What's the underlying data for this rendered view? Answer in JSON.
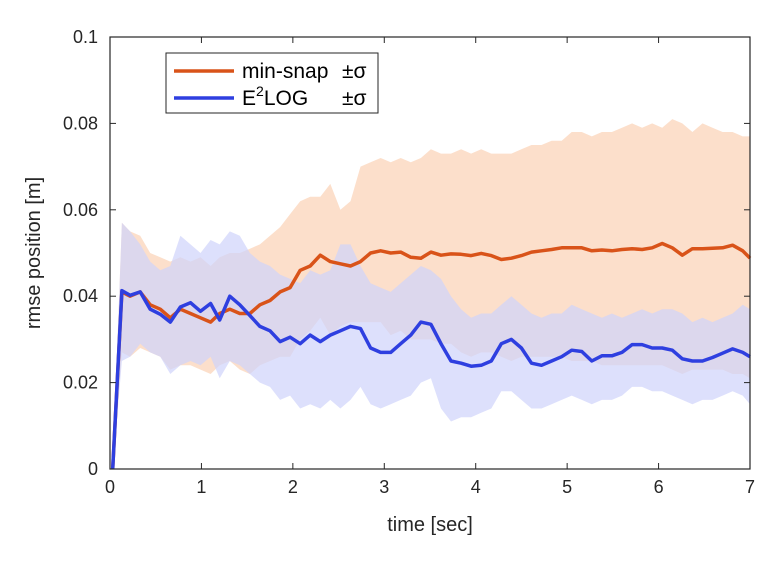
{
  "chart_data": {
    "type": "line",
    "title": "",
    "xlabel": "time [sec]",
    "ylabel": "rmse position [m]",
    "xlim": [
      0,
      7
    ],
    "ylim": [
      0,
      0.1
    ],
    "xticks": [
      "0",
      "1",
      "2",
      "3",
      "4",
      "5",
      "6",
      "7"
    ],
    "yticks": [
      "0",
      "0.02",
      "0.04",
      "0.06",
      "0.08",
      "0.1"
    ],
    "grid": false,
    "legend_position": "top-left",
    "legend": {
      "entries": [
        {
          "main": "min-snap",
          "sup": "",
          "after": "",
          "pm": "±σ"
        },
        {
          "main": "E",
          "sup": "2",
          "after": "LOG",
          "pm": "±σ"
        }
      ]
    },
    "series": [
      {
        "name": "min-snap",
        "color": "#d95319",
        "band_color": "#fbd9c2",
        "x": [
          0.03,
          0.13,
          0.22,
          0.33,
          0.44,
          0.55,
          0.66,
          0.77,
          0.88,
          0.99,
          1.1,
          1.2,
          1.31,
          1.42,
          1.53,
          1.64,
          1.75,
          1.86,
          1.97,
          2.08,
          2.19,
          2.3,
          2.41,
          2.52,
          2.63,
          2.74,
          2.85,
          2.96,
          3.07,
          3.18,
          3.29,
          3.4,
          3.51,
          3.62,
          3.73,
          3.84,
          3.95,
          4.06,
          4.17,
          4.28,
          4.39,
          4.5,
          4.61,
          4.72,
          4.83,
          4.94,
          5.05,
          5.16,
          5.27,
          5.38,
          5.49,
          5.6,
          5.71,
          5.82,
          5.93,
          6.04,
          6.15,
          6.26,
          6.37,
          6.48,
          6.59,
          6.7,
          6.81,
          6.92,
          7.0
        ],
        "mean": [
          0.0,
          0.041,
          0.04,
          0.041,
          0.038,
          0.037,
          0.035,
          0.037,
          0.036,
          0.035,
          0.034,
          0.036,
          0.037,
          0.036,
          0.036,
          0.038,
          0.039,
          0.041,
          0.042,
          0.046,
          0.047,
          0.0495,
          0.048,
          0.0475,
          0.047,
          0.048,
          0.05,
          0.0505,
          0.05,
          0.0502,
          0.049,
          0.0488,
          0.0502,
          0.0495,
          0.0498,
          0.0497,
          0.0494,
          0.0499,
          0.0494,
          0.0485,
          0.0488,
          0.0494,
          0.0502,
          0.0505,
          0.0508,
          0.0512,
          0.0512,
          0.0512,
          0.0505,
          0.0507,
          0.0505,
          0.0508,
          0.051,
          0.0508,
          0.0512,
          0.0522,
          0.0512,
          0.0495,
          0.051,
          0.051,
          0.0511,
          0.0512,
          0.0518,
          0.0505,
          0.0488
        ],
        "upper": [
          0.0,
          0.057,
          0.055,
          0.054,
          0.05,
          0.049,
          0.048,
          0.049,
          0.048,
          0.049,
          0.047,
          0.049,
          0.05,
          0.05,
          0.051,
          0.052,
          0.054,
          0.056,
          0.059,
          0.062,
          0.063,
          0.063,
          0.066,
          0.06,
          0.062,
          0.07,
          0.071,
          0.072,
          0.071,
          0.072,
          0.071,
          0.072,
          0.074,
          0.073,
          0.073,
          0.074,
          0.073,
          0.074,
          0.073,
          0.073,
          0.073,
          0.074,
          0.075,
          0.075,
          0.076,
          0.076,
          0.078,
          0.078,
          0.077,
          0.078,
          0.078,
          0.079,
          0.08,
          0.079,
          0.08,
          0.079,
          0.081,
          0.08,
          0.078,
          0.08,
          0.079,
          0.078,
          0.078,
          0.077,
          0.077
        ],
        "lower": [
          0.0,
          0.027,
          0.026,
          0.028,
          0.027,
          0.026,
          0.023,
          0.024,
          0.024,
          0.023,
          0.022,
          0.024,
          0.025,
          0.023,
          0.022,
          0.024,
          0.025,
          0.026,
          0.026,
          0.03,
          0.032,
          0.035,
          0.031,
          0.033,
          0.034,
          0.034,
          0.034,
          0.034,
          0.031,
          0.032,
          0.03,
          0.03,
          0.03,
          0.029,
          0.029,
          0.027,
          0.026,
          0.027,
          0.027,
          0.026,
          0.025,
          0.026,
          0.026,
          0.026,
          0.026,
          0.026,
          0.025,
          0.025,
          0.025,
          0.024,
          0.024,
          0.024,
          0.024,
          0.024,
          0.024,
          0.024,
          0.023,
          0.022,
          0.023,
          0.023,
          0.023,
          0.023,
          0.022,
          0.022,
          0.021
        ]
      },
      {
        "name": "E2LOG",
        "color": "#2e3fe0",
        "band_color": "#cfd3fb",
        "x": [
          0.03,
          0.13,
          0.22,
          0.33,
          0.44,
          0.55,
          0.66,
          0.77,
          0.88,
          0.99,
          1.1,
          1.2,
          1.31,
          1.42,
          1.53,
          1.64,
          1.75,
          1.86,
          1.97,
          2.08,
          2.19,
          2.3,
          2.41,
          2.52,
          2.63,
          2.74,
          2.85,
          2.96,
          3.07,
          3.18,
          3.29,
          3.4,
          3.51,
          3.62,
          3.73,
          3.84,
          3.95,
          4.06,
          4.17,
          4.28,
          4.39,
          4.5,
          4.61,
          4.72,
          4.83,
          4.94,
          5.05,
          5.16,
          5.27,
          5.38,
          5.49,
          5.6,
          5.71,
          5.82,
          5.93,
          6.04,
          6.15,
          6.26,
          6.37,
          6.48,
          6.59,
          6.7,
          6.81,
          6.92,
          7.0
        ],
        "mean": [
          0.0,
          0.0413,
          0.0402,
          0.041,
          0.037,
          0.0358,
          0.034,
          0.0375,
          0.0385,
          0.0365,
          0.0383,
          0.0345,
          0.04,
          0.038,
          0.0355,
          0.033,
          0.032,
          0.0295,
          0.0305,
          0.029,
          0.031,
          0.0295,
          0.031,
          0.032,
          0.033,
          0.0325,
          0.028,
          0.027,
          0.027,
          0.029,
          0.031,
          0.034,
          0.0335,
          0.029,
          0.025,
          0.0245,
          0.0238,
          0.024,
          0.025,
          0.029,
          0.03,
          0.028,
          0.0245,
          0.024,
          0.025,
          0.026,
          0.0275,
          0.0272,
          0.025,
          0.0262,
          0.0262,
          0.027,
          0.0288,
          0.0288,
          0.028,
          0.028,
          0.0275,
          0.0255,
          0.025,
          0.025,
          0.0258,
          0.0268,
          0.0278,
          0.027,
          0.026
        ],
        "upper": [
          0.0,
          0.057,
          0.055,
          0.052,
          0.048,
          0.046,
          0.047,
          0.054,
          0.052,
          0.05,
          0.053,
          0.052,
          0.055,
          0.054,
          0.05,
          0.048,
          0.047,
          0.045,
          0.044,
          0.043,
          0.046,
          0.045,
          0.046,
          0.052,
          0.052,
          0.047,
          0.043,
          0.042,
          0.041,
          0.043,
          0.045,
          0.047,
          0.046,
          0.044,
          0.04,
          0.037,
          0.035,
          0.036,
          0.036,
          0.038,
          0.04,
          0.038,
          0.036,
          0.035,
          0.036,
          0.036,
          0.038,
          0.037,
          0.036,
          0.035,
          0.036,
          0.035,
          0.036,
          0.037,
          0.036,
          0.037,
          0.037,
          0.036,
          0.034,
          0.035,
          0.034,
          0.035,
          0.036,
          0.038,
          0.037
        ],
        "lower": [
          0.0,
          0.025,
          0.026,
          0.029,
          0.027,
          0.026,
          0.022,
          0.024,
          0.025,
          0.024,
          0.026,
          0.021,
          0.025,
          0.024,
          0.022,
          0.02,
          0.019,
          0.016,
          0.017,
          0.014,
          0.015,
          0.014,
          0.016,
          0.014,
          0.016,
          0.019,
          0.015,
          0.014,
          0.015,
          0.016,
          0.017,
          0.02,
          0.021,
          0.014,
          0.011,
          0.012,
          0.012,
          0.013,
          0.014,
          0.018,
          0.018,
          0.016,
          0.014,
          0.014,
          0.015,
          0.016,
          0.017,
          0.016,
          0.015,
          0.016,
          0.016,
          0.017,
          0.019,
          0.019,
          0.018,
          0.018,
          0.017,
          0.016,
          0.015,
          0.016,
          0.016,
          0.017,
          0.018,
          0.017,
          0.015
        ]
      }
    ]
  }
}
